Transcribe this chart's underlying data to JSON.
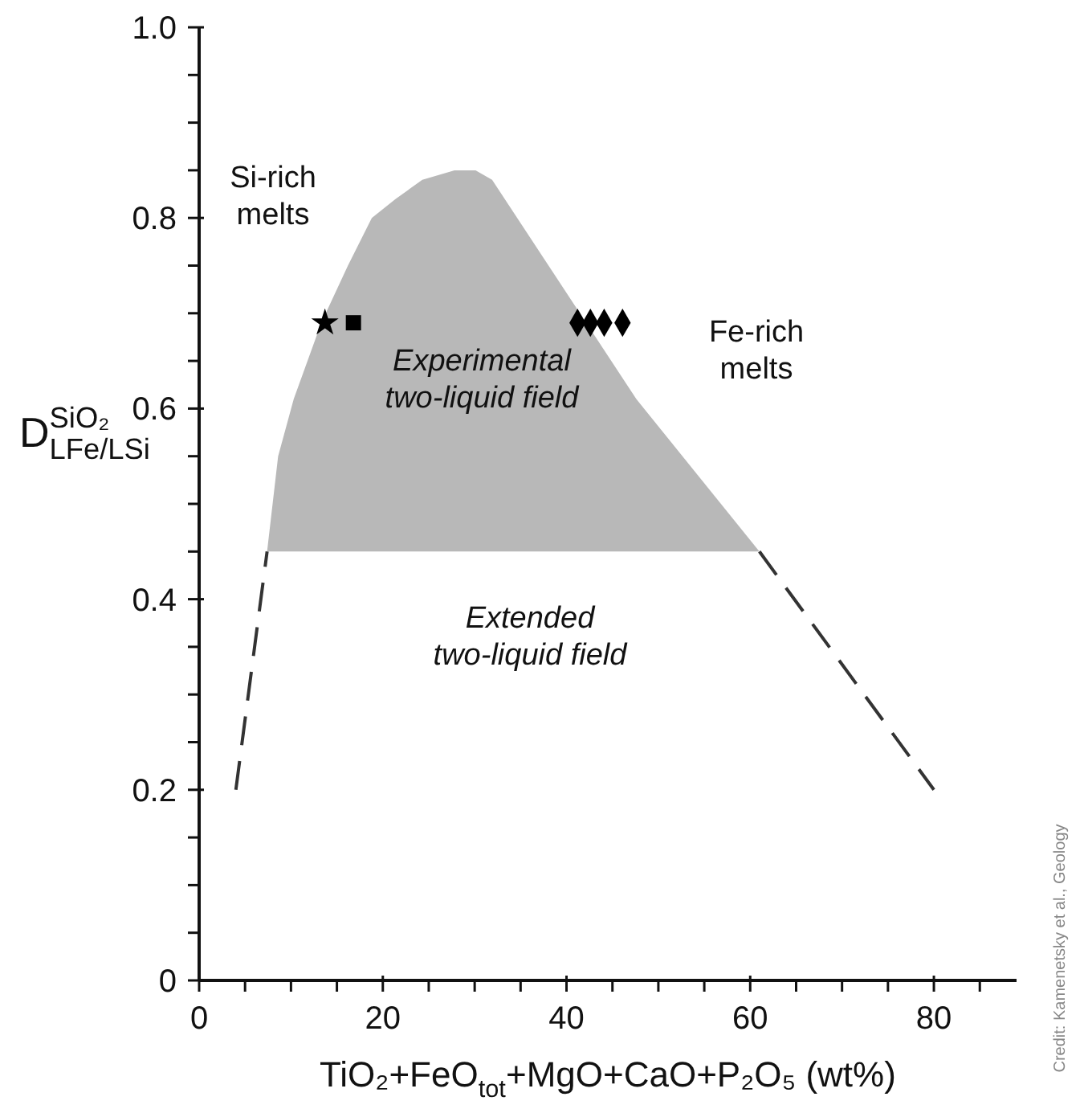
{
  "chart_data": {
    "type": "area",
    "xlabel": "TiO₂+FeO$_{tot}$+MgO+CaO+P₂O₅ (wt%)",
    "ylabel": "D$^{SiO₂}$$_{LFe/LSi}$",
    "xlim": [
      0,
      89
    ],
    "ylim": [
      0,
      1
    ],
    "xticks": [
      0,
      {
        "value": 5,
        "label": null
      },
      {
        "value": 10,
        "label": null
      },
      {
        "value": 15,
        "label": null
      },
      20,
      {
        "value": 25,
        "label": null
      },
      {
        "value": 30,
        "label": null
      },
      {
        "value": 35,
        "label": null
      },
      40,
      {
        "value": 45,
        "label": null
      },
      {
        "value": 50,
        "label": null
      },
      {
        "value": 55,
        "label": null
      },
      60,
      {
        "value": 65,
        "label": null
      },
      {
        "value": 70,
        "label": null
      },
      {
        "value": 75,
        "label": null
      },
      80,
      {
        "value": 85,
        "label": null
      }
    ],
    "yticks": [
      0,
      {
        "value": 0.05,
        "label": null
      },
      {
        "value": 0.1,
        "label": null
      },
      {
        "value": 0.15,
        "label": null
      },
      0.2,
      {
        "value": 0.25,
        "label": null
      },
      {
        "value": 0.3,
        "label": null
      },
      {
        "value": 0.35,
        "label": null
      },
      0.4,
      {
        "value": 0.45,
        "label": null
      },
      {
        "value": 0.5,
        "label": null
      },
      {
        "value": 0.55,
        "label": null
      },
      0.6,
      {
        "value": 0.65,
        "label": null
      },
      {
        "value": 0.7,
        "label": null
      },
      {
        "value": 0.75,
        "label": null
      },
      0.8,
      {
        "value": 0.85,
        "label": null
      },
      {
        "value": 0.9,
        "label": null
      },
      {
        "value": 0.95,
        "label": null
      },
      {
        "value": 1,
        "label": "1.0"
      }
    ],
    "series": [
      {
        "type": "area",
        "color": "#b8b8b8",
        "x": [
          7.4,
          8.6,
          10.3,
          13.3,
          16.2,
          18.8,
          21.4,
          24.3,
          27.8,
          30.1,
          31.9,
          47.6,
          61
        ],
        "values": [
          0.45,
          0.55,
          0.61,
          0.69,
          0.75,
          0.8,
          0.82,
          0.84,
          0.85,
          0.85,
          0.84,
          0.61,
          0.45
        ]
      },
      {
        "type": "line",
        "color": "#333333",
        "line_style": "dashed",
        "x": [
          4,
          7.4
        ],
        "values": [
          0.2,
          0.45
        ]
      },
      {
        "type": "line",
        "color": "#333333",
        "line_style": "dashed",
        "x": [
          61,
          80
        ],
        "values": [
          0.45,
          0.2
        ]
      },
      {
        "type": "scatter",
        "color": "#000000",
        "marker": "star",
        "x": [
          13.7
        ],
        "values": [
          0.69
        ]
      },
      {
        "type": "scatter",
        "color": "#000000",
        "marker": "square",
        "x": [
          16.8
        ],
        "values": [
          0.69
        ]
      },
      {
        "type": "scatter",
        "color": "#000000",
        "marker": "diamond",
        "x": [
          41.2,
          42.6,
          44.1,
          46.1
        ],
        "values": [
          0.69,
          0.69,
          0.69,
          0.69
        ]
      }
    ],
    "annotations": [
      "Si-rich\nmelts",
      "Fe-rich\nmelts",
      "Experimental\ntwo-liquid field",
      "Extended\ntwo-liquid field",
      "Credit: Kamenetsky et al., Geology"
    ]
  }
}
